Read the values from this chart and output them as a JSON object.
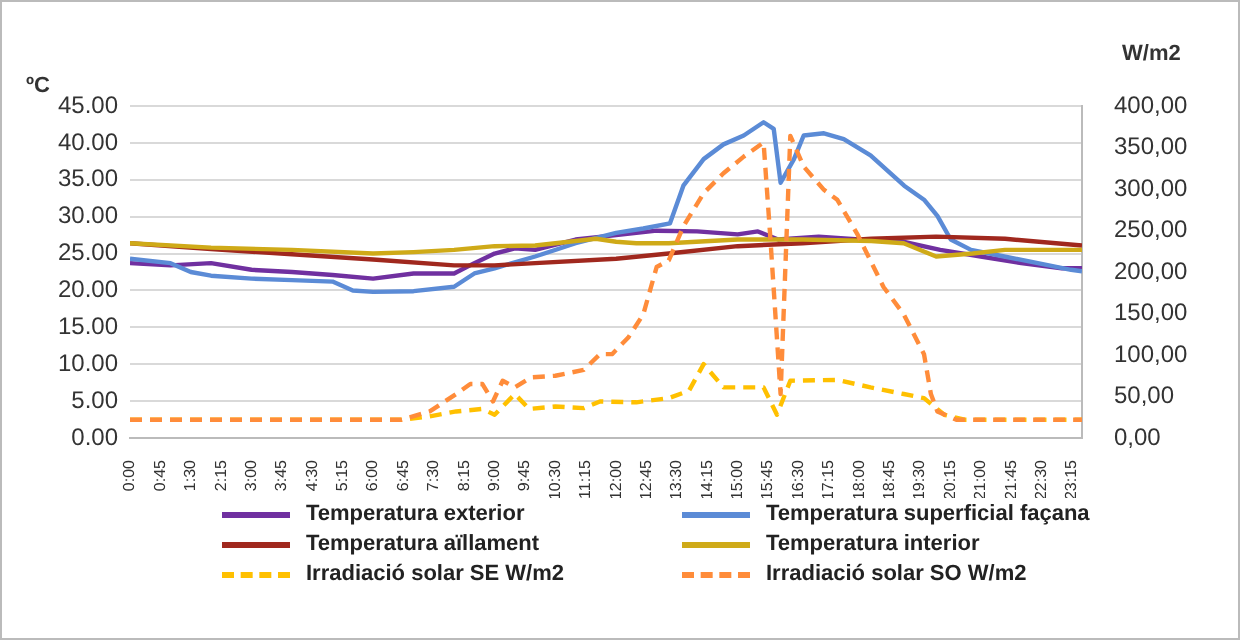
{
  "chart_data": {
    "type": "line",
    "ylabel": "ºC",
    "y2label": "W/m2",
    "xlim": [
      0,
      23.5
    ],
    "xticks": [
      {
        "value": 0,
        "label": "0:00"
      },
      {
        "value": 0.75,
        "label": "0:45"
      },
      {
        "value": 1.5,
        "label": "1:30"
      },
      {
        "value": 2.25,
        "label": "2:15"
      },
      {
        "value": 3,
        "label": "3:00"
      },
      {
        "value": 3.75,
        "label": "3:45"
      },
      {
        "value": 4.5,
        "label": "4:30"
      },
      {
        "value": 5.25,
        "label": "5:15"
      },
      {
        "value": 6,
        "label": "6:00"
      },
      {
        "value": 6.75,
        "label": "6:45"
      },
      {
        "value": 7.5,
        "label": "7:30"
      },
      {
        "value": 8.25,
        "label": "8:15"
      },
      {
        "value": 9,
        "label": "9:00"
      },
      {
        "value": 9.75,
        "label": "9:45"
      },
      {
        "value": 10.5,
        "label": "10:30"
      },
      {
        "value": 11.25,
        "label": "11:15"
      },
      {
        "value": 12,
        "label": "12:00"
      },
      {
        "value": 12.75,
        "label": "12:45"
      },
      {
        "value": 13.5,
        "label": "13:30"
      },
      {
        "value": 14.25,
        "label": "14:15"
      },
      {
        "value": 15,
        "label": "15:00"
      },
      {
        "value": 15.75,
        "label": "15:45"
      },
      {
        "value": 16.5,
        "label": "16:30"
      },
      {
        "value": 17.25,
        "label": "17:15"
      },
      {
        "value": 18,
        "label": "18:00"
      },
      {
        "value": 18.75,
        "label": "18:45"
      },
      {
        "value": 19.5,
        "label": "19:30"
      },
      {
        "value": 20.25,
        "label": "20:15"
      },
      {
        "value": 21,
        "label": "21:00"
      },
      {
        "value": 21.75,
        "label": "21:45"
      },
      {
        "value": 22.5,
        "label": "22:30"
      },
      {
        "value": 23.25,
        "label": "23:15"
      }
    ],
    "ylim": [
      0,
      45
    ],
    "yticks": [
      {
        "value": 0,
        "label": "0.00"
      },
      {
        "value": 5,
        "label": "5.00"
      },
      {
        "value": 10,
        "label": "10.00"
      },
      {
        "value": 15,
        "label": "15.00"
      },
      {
        "value": 20,
        "label": "20.00"
      },
      {
        "value": 25,
        "label": "25.00"
      },
      {
        "value": 30,
        "label": "30.00"
      },
      {
        "value": 35,
        "label": "35.00"
      },
      {
        "value": 40,
        "label": "40.00"
      },
      {
        "value": 45,
        "label": "45.00"
      }
    ],
    "y2lim": [
      0,
      400
    ],
    "y2ticks": [
      {
        "value": 0,
        "label": "0,00"
      },
      {
        "value": 50,
        "label": "50,00"
      },
      {
        "value": 100,
        "label": "100,00"
      },
      {
        "value": 150,
        "label": "150,00"
      },
      {
        "value": 200,
        "label": "200,00"
      },
      {
        "value": 250,
        "label": "250,00"
      },
      {
        "value": 300,
        "label": "300,00"
      },
      {
        "value": 350,
        "label": "350,00"
      },
      {
        "value": 400,
        "label": "400,00"
      }
    ],
    "grid": "y",
    "legend": "bottom",
    "marker": "none",
    "series": [
      {
        "name": "Temperatura exterior",
        "color": "#7030a0",
        "line_style": "solid",
        "x": [
          0,
          1,
          2,
          3,
          4,
          5,
          6,
          7,
          8,
          8.5,
          9,
          9.5,
          10,
          11,
          12,
          13,
          14,
          15,
          15.5,
          16,
          17,
          18,
          19,
          20,
          21,
          22,
          23,
          23.5
        ],
        "values": [
          23.7,
          23.4,
          23.7,
          22.8,
          22.5,
          22.1,
          21.6,
          22.3,
          22.3,
          23.7,
          25.0,
          25.7,
          25.5,
          26.9,
          27.5,
          28.1,
          28.0,
          27.6,
          28.0,
          26.9,
          27.3,
          26.9,
          26.7,
          25.5,
          24.6,
          23.7,
          23.0,
          23.0
        ]
      },
      {
        "name": "Temperatura superficial façana",
        "color": "#5b8bd6",
        "line_style": "solid",
        "x": [
          0,
          1,
          1.5,
          2,
          3,
          4,
          5,
          5.5,
          6,
          7,
          8,
          8.5,
          9,
          10,
          11,
          12,
          12.67,
          13.33,
          13.66,
          14.16,
          14.65,
          15.15,
          15.64,
          15.89,
          16.06,
          16.39,
          16.63,
          17.13,
          17.62,
          18.28,
          19.11,
          19.6,
          19.93,
          20.26,
          20.76,
          21.58,
          22.41,
          23.23,
          23.5
        ],
        "values": [
          24.3,
          23.7,
          22.5,
          22.0,
          21.6,
          21.4,
          21.2,
          20.0,
          19.8,
          19.9,
          20.5,
          22.3,
          23.0,
          24.6,
          26.4,
          27.8,
          28.4,
          29.1,
          34.2,
          37.8,
          39.8,
          41.0,
          42.8,
          41.9,
          34.6,
          37.8,
          41.0,
          41.3,
          40.5,
          38.3,
          34.2,
          32.3,
          30.1,
          26.9,
          25.5,
          24.6,
          23.7,
          22.8,
          22.6
        ]
      },
      {
        "name": "Temperatura aïllament",
        "color": "#a0281e",
        "line_style": "solid",
        "x": [
          0,
          2,
          4,
          6,
          8,
          9,
          10,
          12,
          13.3,
          15,
          16.6,
          18.3,
          19.9,
          21.6,
          23.5
        ],
        "values": [
          26.4,
          25.6,
          24.9,
          24.2,
          23.4,
          23.4,
          23.7,
          24.3,
          25.0,
          26.0,
          26.4,
          27.0,
          27.3,
          27.0,
          26.1
        ]
      },
      {
        "name": "Temperatura interior",
        "color": "#cfaa18",
        "line_style": "solid",
        "x": [
          0,
          2,
          4,
          6,
          7,
          8,
          9,
          10,
          11,
          11.5,
          12,
          12.5,
          13.3,
          15,
          15.8,
          16.6,
          18.3,
          19.1,
          19.9,
          20.8,
          21.6,
          23.5
        ],
        "values": [
          26.4,
          25.8,
          25.5,
          25.0,
          25.2,
          25.5,
          26.0,
          26.1,
          26.7,
          27.0,
          26.6,
          26.4,
          26.4,
          26.9,
          26.9,
          26.9,
          26.7,
          26.4,
          24.6,
          25.0,
          25.5,
          25.5
        ]
      },
      {
        "name": "Irradiació solar SE W/m2",
        "color": "#ffc000",
        "line_style": "dashed",
        "axis": "y2",
        "x": [
          0,
          6.7,
          7.4,
          8.05,
          8.7,
          9.0,
          9.5,
          9.85,
          10.5,
          11.2,
          11.6,
          12.5,
          13.3,
          13.8,
          14.16,
          14.65,
          15.15,
          15.64,
          15.97,
          16.3,
          17.46,
          18.28,
          19.1,
          19.6,
          20.1,
          20.6,
          23.5
        ],
        "values": [
          22,
          22,
          26,
          32,
          35,
          28,
          53,
          35,
          38,
          36,
          44,
          43,
          48,
          57,
          89,
          61,
          61,
          61,
          28,
          69,
          70,
          61,
          53,
          48,
          28,
          22,
          22
        ]
      },
      {
        "name": "Irradiació solar SO W/m2",
        "color": "#ff8c3a",
        "line_style": "dashed",
        "axis": "y2",
        "x": [
          0,
          6.7,
          7.4,
          8.05,
          8.4,
          8.7,
          8.96,
          9.2,
          9.5,
          9.9,
          10.5,
          11.2,
          11.6,
          11.9,
          12.3,
          12.67,
          13.0,
          13.3,
          13.66,
          14.16,
          14.65,
          15.15,
          15.64,
          15.8,
          16.06,
          16.3,
          16.63,
          17.13,
          17.46,
          17.95,
          18.6,
          19.1,
          19.6,
          19.77,
          19.93,
          20.4,
          23.5
        ],
        "values": [
          22,
          22,
          32,
          53,
          65,
          65,
          44,
          69,
          61,
          73,
          75,
          82,
          101,
          101,
          121,
          149,
          206,
          214,
          255,
          295,
          319,
          339,
          356,
          246,
          53,
          364,
          327,
          299,
          287,
          246,
          182,
          149,
          101,
          53,
          32,
          22,
          22
        ]
      }
    ]
  }
}
